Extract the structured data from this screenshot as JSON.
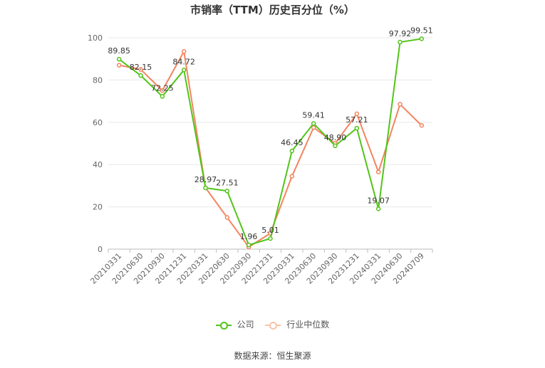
{
  "chart_data": {
    "type": "line",
    "title": "市销率（TTM）历史百分位（%）",
    "categories": [
      "20210331",
      "20210630",
      "20210930",
      "20211231",
      "20220331",
      "20220630",
      "20220930",
      "20221231",
      "20230331",
      "20230630",
      "20230930",
      "20231231",
      "20240331",
      "20240630",
      "20240709"
    ],
    "series": [
      {
        "name": "公司",
        "color": "#52c41a",
        "values": [
          89.85,
          82.15,
          72.25,
          84.72,
          28.97,
          27.51,
          1.96,
          5.01,
          46.45,
          59.41,
          48.9,
          57.21,
          19.07,
          97.92,
          99.51
        ],
        "labels": [
          "89.85",
          "82.15",
          "72.25",
          "84.72",
          "28.97",
          "27.51",
          "1.96",
          "5.01",
          "46.45",
          "59.41",
          "48.90",
          "57.21",
          "19.07",
          "97.92",
          "99.51"
        ]
      },
      {
        "name": "行业中位数",
        "color": "#f4845f",
        "values": [
          87.0,
          85.0,
          75.0,
          93.5,
          29.0,
          15.0,
          1.0,
          7.5,
          34.5,
          57.5,
          50.0,
          64.0,
          36.5,
          68.5,
          58.5
        ]
      }
    ],
    "yticks": [
      0,
      20,
      40,
      60,
      80,
      100
    ],
    "ylim": [
      0,
      100
    ],
    "grid": true,
    "legend_position": "bottom"
  },
  "source": "数据来源：恒生聚源"
}
